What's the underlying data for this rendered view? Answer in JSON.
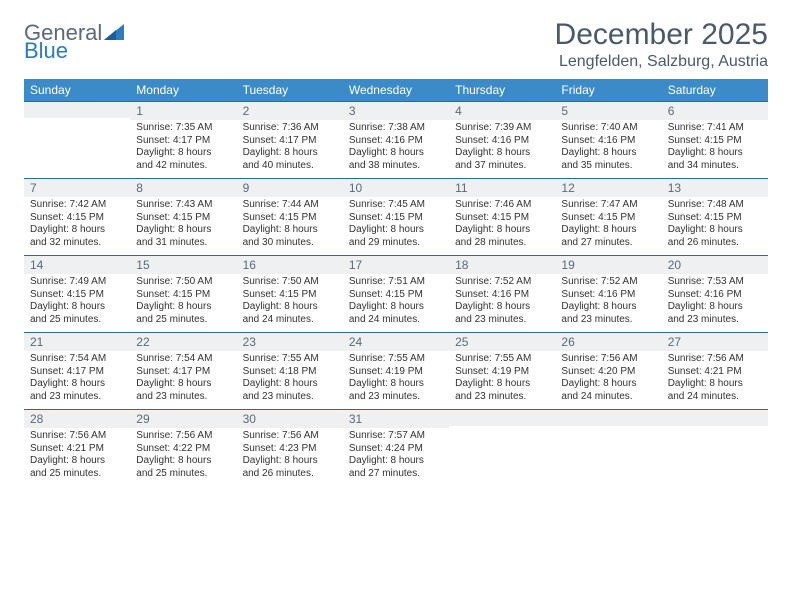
{
  "logo": {
    "word1": "General",
    "word2": "Blue"
  },
  "title": "December 2025",
  "location": "Lengfelden, Salzburg, Austria",
  "colors": {
    "header_bg": "#3b8bc9",
    "header_text": "#ffffff",
    "band_bg": "#eef0f2",
    "band_border": "#2a6aa0",
    "title_color": "#4a5a6a",
    "logo_gray": "#5a6a7a",
    "logo_blue": "#2a7bbf"
  },
  "day_names": [
    "Sunday",
    "Monday",
    "Tuesday",
    "Wednesday",
    "Thursday",
    "Friday",
    "Saturday"
  ],
  "weeks": [
    [
      {
        "num": "",
        "sunrise": "",
        "sunset": "",
        "daylight1": "",
        "daylight2": ""
      },
      {
        "num": "1",
        "sunrise": "Sunrise: 7:35 AM",
        "sunset": "Sunset: 4:17 PM",
        "daylight1": "Daylight: 8 hours",
        "daylight2": "and 42 minutes."
      },
      {
        "num": "2",
        "sunrise": "Sunrise: 7:36 AM",
        "sunset": "Sunset: 4:17 PM",
        "daylight1": "Daylight: 8 hours",
        "daylight2": "and 40 minutes."
      },
      {
        "num": "3",
        "sunrise": "Sunrise: 7:38 AM",
        "sunset": "Sunset: 4:16 PM",
        "daylight1": "Daylight: 8 hours",
        "daylight2": "and 38 minutes."
      },
      {
        "num": "4",
        "sunrise": "Sunrise: 7:39 AM",
        "sunset": "Sunset: 4:16 PM",
        "daylight1": "Daylight: 8 hours",
        "daylight2": "and 37 minutes."
      },
      {
        "num": "5",
        "sunrise": "Sunrise: 7:40 AM",
        "sunset": "Sunset: 4:16 PM",
        "daylight1": "Daylight: 8 hours",
        "daylight2": "and 35 minutes."
      },
      {
        "num": "6",
        "sunrise": "Sunrise: 7:41 AM",
        "sunset": "Sunset: 4:15 PM",
        "daylight1": "Daylight: 8 hours",
        "daylight2": "and 34 minutes."
      }
    ],
    [
      {
        "num": "7",
        "sunrise": "Sunrise: 7:42 AM",
        "sunset": "Sunset: 4:15 PM",
        "daylight1": "Daylight: 8 hours",
        "daylight2": "and 32 minutes."
      },
      {
        "num": "8",
        "sunrise": "Sunrise: 7:43 AM",
        "sunset": "Sunset: 4:15 PM",
        "daylight1": "Daylight: 8 hours",
        "daylight2": "and 31 minutes."
      },
      {
        "num": "9",
        "sunrise": "Sunrise: 7:44 AM",
        "sunset": "Sunset: 4:15 PM",
        "daylight1": "Daylight: 8 hours",
        "daylight2": "and 30 minutes."
      },
      {
        "num": "10",
        "sunrise": "Sunrise: 7:45 AM",
        "sunset": "Sunset: 4:15 PM",
        "daylight1": "Daylight: 8 hours",
        "daylight2": "and 29 minutes."
      },
      {
        "num": "11",
        "sunrise": "Sunrise: 7:46 AM",
        "sunset": "Sunset: 4:15 PM",
        "daylight1": "Daylight: 8 hours",
        "daylight2": "and 28 minutes."
      },
      {
        "num": "12",
        "sunrise": "Sunrise: 7:47 AM",
        "sunset": "Sunset: 4:15 PM",
        "daylight1": "Daylight: 8 hours",
        "daylight2": "and 27 minutes."
      },
      {
        "num": "13",
        "sunrise": "Sunrise: 7:48 AM",
        "sunset": "Sunset: 4:15 PM",
        "daylight1": "Daylight: 8 hours",
        "daylight2": "and 26 minutes."
      }
    ],
    [
      {
        "num": "14",
        "sunrise": "Sunrise: 7:49 AM",
        "sunset": "Sunset: 4:15 PM",
        "daylight1": "Daylight: 8 hours",
        "daylight2": "and 25 minutes."
      },
      {
        "num": "15",
        "sunrise": "Sunrise: 7:50 AM",
        "sunset": "Sunset: 4:15 PM",
        "daylight1": "Daylight: 8 hours",
        "daylight2": "and 25 minutes."
      },
      {
        "num": "16",
        "sunrise": "Sunrise: 7:50 AM",
        "sunset": "Sunset: 4:15 PM",
        "daylight1": "Daylight: 8 hours",
        "daylight2": "and 24 minutes."
      },
      {
        "num": "17",
        "sunrise": "Sunrise: 7:51 AM",
        "sunset": "Sunset: 4:15 PM",
        "daylight1": "Daylight: 8 hours",
        "daylight2": "and 24 minutes."
      },
      {
        "num": "18",
        "sunrise": "Sunrise: 7:52 AM",
        "sunset": "Sunset: 4:16 PM",
        "daylight1": "Daylight: 8 hours",
        "daylight2": "and 23 minutes."
      },
      {
        "num": "19",
        "sunrise": "Sunrise: 7:52 AM",
        "sunset": "Sunset: 4:16 PM",
        "daylight1": "Daylight: 8 hours",
        "daylight2": "and 23 minutes."
      },
      {
        "num": "20",
        "sunrise": "Sunrise: 7:53 AM",
        "sunset": "Sunset: 4:16 PM",
        "daylight1": "Daylight: 8 hours",
        "daylight2": "and 23 minutes."
      }
    ],
    [
      {
        "num": "21",
        "sunrise": "Sunrise: 7:54 AM",
        "sunset": "Sunset: 4:17 PM",
        "daylight1": "Daylight: 8 hours",
        "daylight2": "and 23 minutes."
      },
      {
        "num": "22",
        "sunrise": "Sunrise: 7:54 AM",
        "sunset": "Sunset: 4:17 PM",
        "daylight1": "Daylight: 8 hours",
        "daylight2": "and 23 minutes."
      },
      {
        "num": "23",
        "sunrise": "Sunrise: 7:55 AM",
        "sunset": "Sunset: 4:18 PM",
        "daylight1": "Daylight: 8 hours",
        "daylight2": "and 23 minutes."
      },
      {
        "num": "24",
        "sunrise": "Sunrise: 7:55 AM",
        "sunset": "Sunset: 4:19 PM",
        "daylight1": "Daylight: 8 hours",
        "daylight2": "and 23 minutes."
      },
      {
        "num": "25",
        "sunrise": "Sunrise: 7:55 AM",
        "sunset": "Sunset: 4:19 PM",
        "daylight1": "Daylight: 8 hours",
        "daylight2": "and 23 minutes."
      },
      {
        "num": "26",
        "sunrise": "Sunrise: 7:56 AM",
        "sunset": "Sunset: 4:20 PM",
        "daylight1": "Daylight: 8 hours",
        "daylight2": "and 24 minutes."
      },
      {
        "num": "27",
        "sunrise": "Sunrise: 7:56 AM",
        "sunset": "Sunset: 4:21 PM",
        "daylight1": "Daylight: 8 hours",
        "daylight2": "and 24 minutes."
      }
    ],
    [
      {
        "num": "28",
        "sunrise": "Sunrise: 7:56 AM",
        "sunset": "Sunset: 4:21 PM",
        "daylight1": "Daylight: 8 hours",
        "daylight2": "and 25 minutes."
      },
      {
        "num": "29",
        "sunrise": "Sunrise: 7:56 AM",
        "sunset": "Sunset: 4:22 PM",
        "daylight1": "Daylight: 8 hours",
        "daylight2": "and 25 minutes."
      },
      {
        "num": "30",
        "sunrise": "Sunrise: 7:56 AM",
        "sunset": "Sunset: 4:23 PM",
        "daylight1": "Daylight: 8 hours",
        "daylight2": "and 26 minutes."
      },
      {
        "num": "31",
        "sunrise": "Sunrise: 7:57 AM",
        "sunset": "Sunset: 4:24 PM",
        "daylight1": "Daylight: 8 hours",
        "daylight2": "and 27 minutes."
      },
      {
        "num": "",
        "sunrise": "",
        "sunset": "",
        "daylight1": "",
        "daylight2": ""
      },
      {
        "num": "",
        "sunrise": "",
        "sunset": "",
        "daylight1": "",
        "daylight2": ""
      },
      {
        "num": "",
        "sunrise": "",
        "sunset": "",
        "daylight1": "",
        "daylight2": ""
      }
    ]
  ]
}
